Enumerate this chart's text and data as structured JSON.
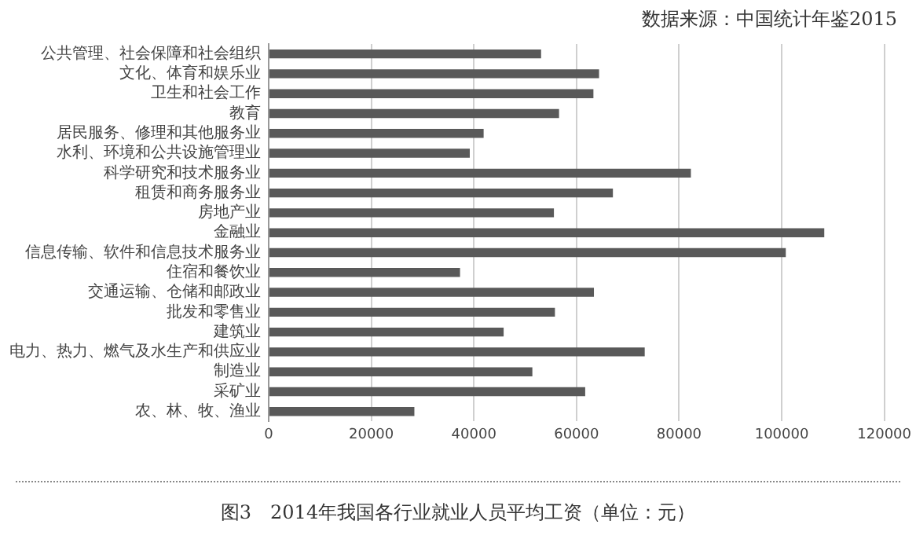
{
  "chart_data": {
    "type": "bar",
    "orientation": "horizontal",
    "title": "图3　2014年我国各行业就业人员平均工资（单位：元）",
    "annotations": [
      "数据来源：中国统计年鉴2015"
    ],
    "categories": [
      "公共管理、社会保障和社会组织",
      "文化、体育和娱乐业",
      "卫生和社会工作",
      "教育",
      "居民服务、修理和其他服务业",
      "水利、环境和公共设施管理业",
      "科学研究和技术服务业",
      "租赁和商务服务业",
      "房地产业",
      "金融业",
      "信息传输、软件和信息技术服务业",
      "住宿和餐饮业",
      "交通运输、仓储和邮政业",
      "批发和零售业",
      "建筑业",
      "电力、热力、燃气及水生产和供应业",
      "制造业",
      "采矿业",
      "农、林、牧、渔业"
    ],
    "values": [
      53100,
      64400,
      63300,
      56600,
      41900,
      39200,
      82300,
      67100,
      55600,
      108300,
      100800,
      37300,
      63400,
      55800,
      45800,
      73300,
      51400,
      61700,
      28400
    ],
    "color": "#595959",
    "xlim": [
      0,
      120000
    ],
    "xticks": [
      0,
      20000,
      40000,
      60000,
      80000,
      100000,
      120000
    ],
    "grid": "x",
    "legend": false
  }
}
